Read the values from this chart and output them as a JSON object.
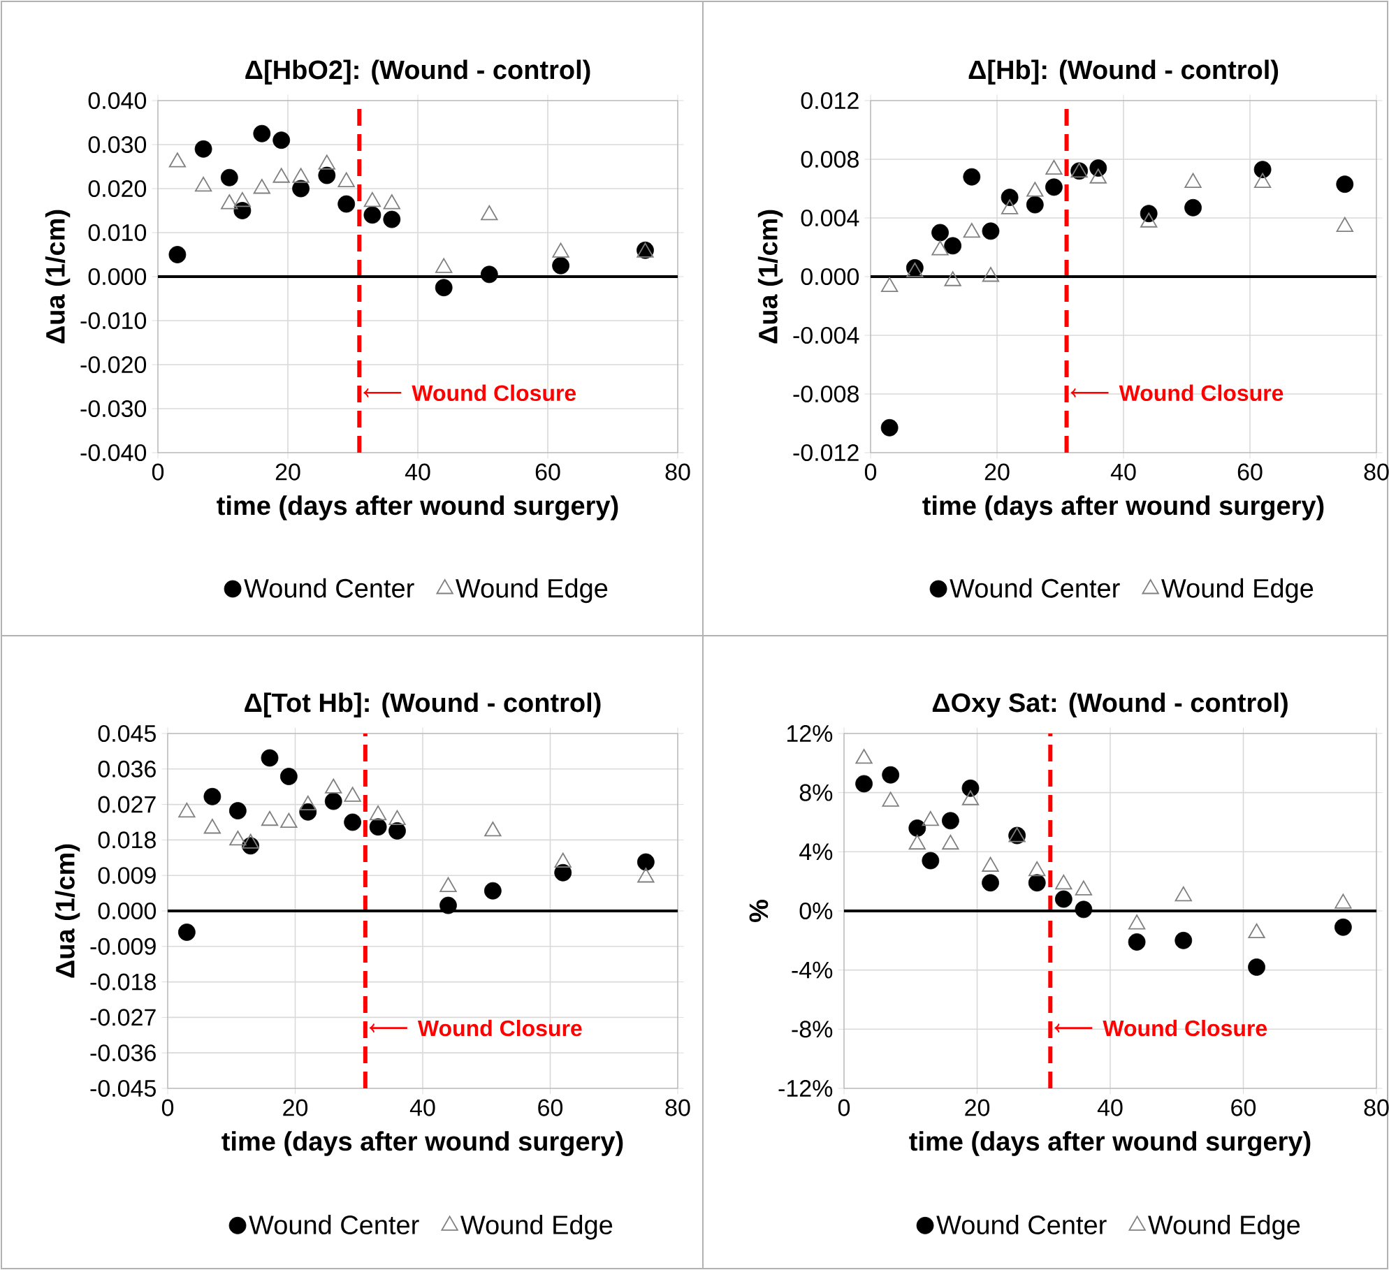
{
  "chart_data": [
    {
      "type": "scatter",
      "title": "Δ[HbO2]: (Wound - control)",
      "xlabel": "time (days after wound surgery)",
      "ylabel": "Δua (1/cm)",
      "x": [
        3,
        7,
        11,
        13,
        16,
        19,
        22,
        26,
        29,
        33,
        36,
        44,
        51,
        62,
        75
      ],
      "series": [
        {
          "name": "Wound Center",
          "color": "#000000",
          "marker": "circle",
          "values": [
            0.005,
            0.029,
            0.0225,
            0.015,
            0.0325,
            0.031,
            0.02,
            0.023,
            0.0165,
            0.014,
            0.013,
            -0.0025,
            0.0005,
            0.0025,
            0.006
          ]
        },
        {
          "name": "Wound Edge",
          "color": "#808080",
          "marker": "triangle",
          "values": [
            0.026,
            0.0205,
            0.0165,
            0.017,
            0.02,
            0.0225,
            0.0225,
            0.0255,
            0.0215,
            0.017,
            0.0165,
            0.002,
            0.014,
            0.0055,
            0.0055
          ]
        }
      ],
      "xlim": [
        0,
        80
      ],
      "xticks": [
        0,
        20,
        40,
        60,
        80
      ],
      "ylim": [
        -0.04,
        0.04
      ],
      "yticks": [
        {
          "value": -0.04,
          "label": "-0.040"
        },
        {
          "value": -0.03,
          "label": "-0.030"
        },
        {
          "value": -0.02,
          "label": "-0.020"
        },
        {
          "value": -0.01,
          "label": "-0.010"
        },
        {
          "value": 0,
          "label": "0.000"
        },
        {
          "value": 0.01,
          "label": "0.010"
        },
        {
          "value": 0.02,
          "label": "0.020"
        },
        {
          "value": 0.03,
          "label": "0.030"
        },
        {
          "value": 0.04,
          "label": "0.040"
        }
      ],
      "grid": true,
      "legend": "bottom",
      "ref_lines": [
        {
          "axis": "x",
          "value": 31,
          "label": "Wound Closure",
          "color": "#ff0000",
          "line_style": "dashed"
        },
        {
          "axis": "y",
          "value": 0,
          "color": "#000000",
          "line_style": "solid"
        }
      ]
    },
    {
      "type": "scatter",
      "title": "Δ[Hb]: (Wound - control)",
      "xlabel": "time (days after wound surgery)",
      "ylabel": "Δua (1/cm)",
      "x": [
        3,
        7,
        11,
        13,
        16,
        19,
        22,
        26,
        29,
        33,
        36,
        44,
        51,
        62,
        75
      ],
      "series": [
        {
          "name": "Wound Center",
          "color": "#000000",
          "marker": "circle",
          "values": [
            -0.0103,
            0.0006,
            0.003,
            0.0021,
            0.0068,
            0.0031,
            0.0054,
            0.0049,
            0.0061,
            0.0072,
            0.0074,
            0.0043,
            0.0047,
            0.0073,
            0.0063
          ]
        },
        {
          "name": "Wound Edge",
          "color": "#808080",
          "marker": "triangle",
          "values": [
            -0.0007,
            0.0003,
            0.0018,
            -0.0003,
            0.003,
            0.0,
            0.0046,
            0.0058,
            0.0073,
            0.0071,
            0.0067,
            0.0037,
            0.0064,
            0.0064,
            0.0034
          ]
        }
      ],
      "xlim": [
        0,
        80
      ],
      "xticks": [
        0,
        20,
        40,
        60,
        80
      ],
      "ylim": [
        -0.012,
        0.012
      ],
      "yticks": [
        {
          "value": -0.012,
          "label": "-0.012"
        },
        {
          "value": -0.008,
          "label": "-0.008"
        },
        {
          "value": -0.004,
          "label": "-0.004"
        },
        {
          "value": 0,
          "label": "0.000"
        },
        {
          "value": 0.004,
          "label": "0.004"
        },
        {
          "value": 0.008,
          "label": "0.008"
        },
        {
          "value": 0.012,
          "label": "0.012"
        }
      ],
      "grid": true,
      "legend": "bottom",
      "ref_lines": [
        {
          "axis": "x",
          "value": 31,
          "label": "Wound Closure",
          "color": "#ff0000",
          "line_style": "dashed"
        },
        {
          "axis": "y",
          "value": 0,
          "color": "#000000",
          "line_style": "solid"
        }
      ]
    },
    {
      "type": "scatter",
      "title": "Δ[Tot Hb]: (Wound - control)",
      "xlabel": "time (days after wound surgery)",
      "ylabel": "Δua (1/cm)",
      "x": [
        3,
        7,
        11,
        13,
        16,
        19,
        22,
        26,
        29,
        33,
        36,
        44,
        51,
        62,
        75
      ],
      "series": [
        {
          "name": "Wound Center",
          "color": "#000000",
          "marker": "circle",
          "values": [
            -0.0054,
            0.029,
            0.0254,
            0.0165,
            0.0388,
            0.0341,
            0.0251,
            0.0278,
            0.0225,
            0.0213,
            0.0203,
            0.0014,
            0.0051,
            0.0097,
            0.0124
          ]
        },
        {
          "name": "Wound Edge",
          "color": "#808080",
          "marker": "triangle",
          "values": [
            0.025,
            0.0209,
            0.0179,
            0.0171,
            0.0229,
            0.0224,
            0.0268,
            0.0311,
            0.029,
            0.0243,
            0.0231,
            0.0061,
            0.0202,
            0.0123,
            0.0085
          ]
        }
      ],
      "xlim": [
        0,
        80
      ],
      "xticks": [
        0,
        20,
        40,
        60,
        80
      ],
      "ylim": [
        -0.045,
        0.045
      ],
      "yticks": [
        {
          "value": -0.045,
          "label": "-0.045"
        },
        {
          "value": -0.036,
          "label": "-0.036"
        },
        {
          "value": -0.027,
          "label": "-0.027"
        },
        {
          "value": -0.018,
          "label": "-0.018"
        },
        {
          "value": -0.009,
          "label": "-0.009"
        },
        {
          "value": 0,
          "label": "0.000"
        },
        {
          "value": 0.009,
          "label": "0.009"
        },
        {
          "value": 0.018,
          "label": "0.018"
        },
        {
          "value": 0.027,
          "label": "0.027"
        },
        {
          "value": 0.036,
          "label": "0.036"
        },
        {
          "value": 0.045,
          "label": "0.045"
        }
      ],
      "grid": true,
      "legend": "bottom",
      "ref_lines": [
        {
          "axis": "x",
          "value": 31,
          "label": "Wound Closure",
          "color": "#ff0000",
          "line_style": "dashed"
        },
        {
          "axis": "y",
          "value": 0,
          "color": "#000000",
          "line_style": "solid"
        }
      ]
    },
    {
      "type": "scatter",
      "title": "ΔOxy Sat: (Wound - control)",
      "xlabel": "time (days after wound surgery)",
      "ylabel": "%",
      "x": [
        3,
        7,
        11,
        13,
        16,
        19,
        22,
        26,
        29,
        33,
        36,
        44,
        51,
        62,
        75
      ],
      "series": [
        {
          "name": "Wound Center",
          "color": "#000000",
          "marker": "circle",
          "values": [
            8.6,
            9.2,
            5.6,
            3.4,
            6.1,
            8.3,
            1.9,
            5.1,
            1.9,
            0.8,
            0.1,
            -2.1,
            -2.0,
            -3.8,
            -1.1
          ]
        },
        {
          "name": "Wound Edge",
          "color": "#808080",
          "marker": "triangle",
          "values": [
            10.3,
            7.4,
            4.5,
            6.1,
            4.5,
            7.5,
            3.0,
            5.0,
            2.7,
            1.8,
            1.4,
            -0.9,
            1.0,
            -1.5,
            0.5
          ]
        }
      ],
      "xlim": [
        0,
        80
      ],
      "xticks": [
        0,
        20,
        40,
        60,
        80
      ],
      "ylim": [
        -12,
        12
      ],
      "yticks": [
        {
          "value": -12,
          "label": "-12%"
        },
        {
          "value": -8,
          "label": "-8%"
        },
        {
          "value": -4,
          "label": "-4%"
        },
        {
          "value": 0,
          "label": "0%"
        },
        {
          "value": 4,
          "label": "4%"
        },
        {
          "value": 8,
          "label": "8%"
        },
        {
          "value": 12,
          "label": "12%"
        }
      ],
      "grid": true,
      "legend": "bottom",
      "ref_lines": [
        {
          "axis": "x",
          "value": 31,
          "label": "Wound Closure",
          "color": "#ff0000",
          "line_style": "dashed"
        },
        {
          "axis": "y",
          "value": 0,
          "color": "#000000",
          "line_style": "solid"
        }
      ]
    }
  ]
}
